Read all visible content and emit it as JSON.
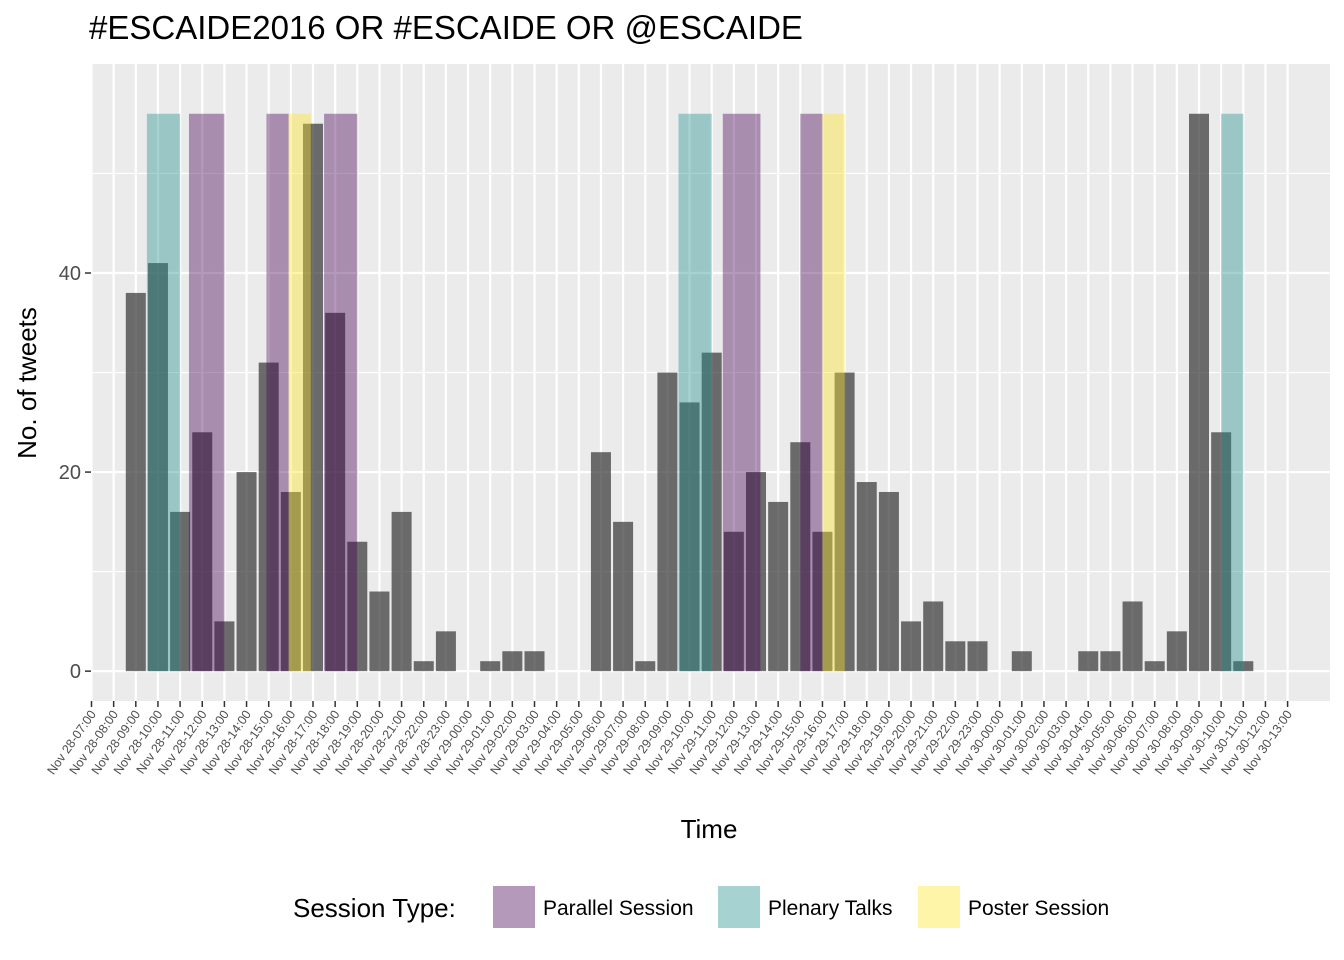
{
  "chart_data": {
    "type": "bar",
    "title": "#ESCAIDE2016 OR #ESCAIDE OR @ESCAIDE",
    "xlabel": "Time",
    "ylabel": "No. of tweets",
    "ylim": [
      -3,
      61
    ],
    "y_ticks": [
      0,
      20,
      40
    ],
    "grid": true,
    "legend_position": "bottom",
    "categories": [
      "Nov 28-07:00",
      "Nov 28-08:00",
      "Nov 28-09:00",
      "Nov 28-10:00",
      "Nov 28-11:00",
      "Nov 28-12:00",
      "Nov 28-13:00",
      "Nov 28-14:00",
      "Nov 28-15:00",
      "Nov 28-16:00",
      "Nov 28-17:00",
      "Nov 28-18:00",
      "Nov 28-19:00",
      "Nov 28-20:00",
      "Nov 28-21:00",
      "Nov 28-22:00",
      "Nov 28-23:00",
      "Nov 29-00:00",
      "Nov 29-01:00",
      "Nov 29-02:00",
      "Nov 29-03:00",
      "Nov 29-04:00",
      "Nov 29-05:00",
      "Nov 29-06:00",
      "Nov 29-07:00",
      "Nov 29-08:00",
      "Nov 29-09:00",
      "Nov 29-10:00",
      "Nov 29-11:00",
      "Nov 29-12:00",
      "Nov 29-13:00",
      "Nov 29-14:00",
      "Nov 29-15:00",
      "Nov 29-16:00",
      "Nov 29-17:00",
      "Nov 29-18:00",
      "Nov 29-19:00",
      "Nov 29-20:00",
      "Nov 29-21:00",
      "Nov 29-22:00",
      "Nov 29-23:00",
      "Nov 30-00:00",
      "Nov 30-01:00",
      "Nov 30-02:00",
      "Nov 30-03:00",
      "Nov 30-04:00",
      "Nov 30-05:00",
      "Nov 30-06:00",
      "Nov 30-07:00",
      "Nov 30-08:00",
      "Nov 30-09:00",
      "Nov 30-10:00",
      "Nov 30-11:00",
      "Nov 30-12:00",
      "Nov 30-13:00"
    ],
    "bars": [
      {
        "x": 2.0,
        "value": 38
      },
      {
        "x": 3.0,
        "value": 41
      },
      {
        "x": 4.0,
        "value": 16
      },
      {
        "x": 5.0,
        "value": 24
      },
      {
        "x": 6.0,
        "value": 5
      },
      {
        "x": 7.0,
        "value": 20
      },
      {
        "x": 8.0,
        "value": 31
      },
      {
        "x": 9.0,
        "value": 18
      },
      {
        "x": 10.0,
        "value": 55
      },
      {
        "x": 11.0,
        "value": 36
      },
      {
        "x": 12.0,
        "value": 13
      },
      {
        "x": 13.0,
        "value": 8
      },
      {
        "x": 14.0,
        "value": 16
      },
      {
        "x": 15.0,
        "value": 1
      },
      {
        "x": 16.0,
        "value": 4
      },
      {
        "x": 18.0,
        "value": 1
      },
      {
        "x": 19.0,
        "value": 2
      },
      {
        "x": 20.0,
        "value": 2
      },
      {
        "x": 23.0,
        "value": 22
      },
      {
        "x": 24.0,
        "value": 15
      },
      {
        "x": 25.0,
        "value": 1
      },
      {
        "x": 26.0,
        "value": 30
      },
      {
        "x": 27.0,
        "value": 27
      },
      {
        "x": 28.0,
        "value": 32
      },
      {
        "x": 29.0,
        "value": 14
      },
      {
        "x": 30.0,
        "value": 20
      },
      {
        "x": 31.0,
        "value": 17
      },
      {
        "x": 32.0,
        "value": 23
      },
      {
        "x": 33.0,
        "value": 14
      },
      {
        "x": 34.0,
        "value": 30
      },
      {
        "x": 35.0,
        "value": 19
      },
      {
        "x": 36.0,
        "value": 18
      },
      {
        "x": 37.0,
        "value": 5
      },
      {
        "x": 38.0,
        "value": 7
      },
      {
        "x": 39.0,
        "value": 3
      },
      {
        "x": 40.0,
        "value": 3
      },
      {
        "x": 42.0,
        "value": 2
      },
      {
        "x": 45.0,
        "value": 2
      },
      {
        "x": 46.0,
        "value": 2
      },
      {
        "x": 47.0,
        "value": 7
      },
      {
        "x": 48.0,
        "value": 1
      },
      {
        "x": 49.0,
        "value": 4
      },
      {
        "x": 50.0,
        "value": 56
      },
      {
        "x": 51.0,
        "value": 24
      },
      {
        "x": 52.0,
        "value": 1
      }
    ],
    "sessions": [
      {
        "type": "Plenary Talks",
        "start": 2.5,
        "end": 4.0
      },
      {
        "type": "Parallel Session",
        "start": 4.4,
        "end": 6.0
      },
      {
        "type": "Parallel Session",
        "start": 7.9,
        "end": 8.9
      },
      {
        "type": "Poster Session",
        "start": 8.9,
        "end": 9.9
      },
      {
        "type": "Parallel Session",
        "start": 10.5,
        "end": 12.0
      },
      {
        "type": "Plenary Talks",
        "start": 26.5,
        "end": 28.0
      },
      {
        "type": "Parallel Session",
        "start": 28.5,
        "end": 30.2
      },
      {
        "type": "Parallel Session",
        "start": 32.0,
        "end": 33.0
      },
      {
        "type": "Poster Session",
        "start": 33.0,
        "end": 34.0
      },
      {
        "type": "Plenary Talks",
        "start": 51.0,
        "end": 52.0
      }
    ],
    "session_max": 56,
    "legend": {
      "title": "Session Type:",
      "entries": [
        {
          "name": "Parallel Session",
          "color": "#440154"
        },
        {
          "name": "Plenary Talks",
          "color": "#21908c"
        },
        {
          "name": "Poster Session",
          "color": "#fde725"
        }
      ]
    },
    "colors": {
      "bar": "#333333",
      "panel": "#ebebeb",
      "grid": "#ffffff"
    }
  }
}
